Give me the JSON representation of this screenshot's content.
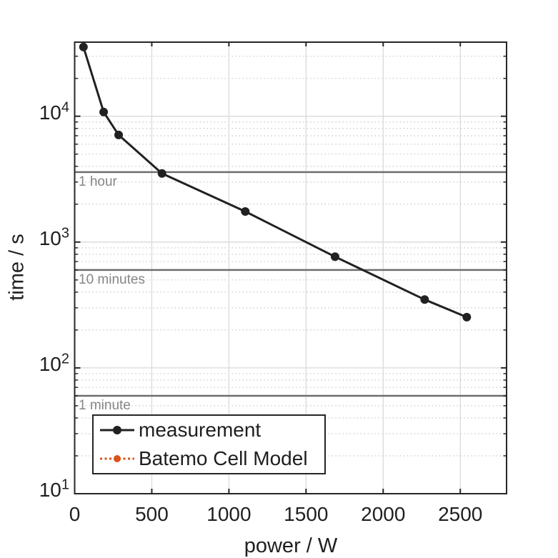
{
  "chart_data": {
    "type": "line",
    "title": "",
    "xlabel": "power / W",
    "ylabel": "time / s",
    "xscale": "linear",
    "yscale": "log",
    "xlim": [
      0,
      2800
    ],
    "ylim": [
      10,
      38800
    ],
    "xticks": [
      0,
      500,
      1000,
      1500,
      2000,
      2500
    ],
    "yticks": [
      {
        "base": "10",
        "exp": "1",
        "value": 10
      },
      {
        "base": "10",
        "exp": "2",
        "value": 100
      },
      {
        "base": "10",
        "exp": "3",
        "value": 1000
      },
      {
        "base": "10",
        "exp": "4",
        "value": 10000
      }
    ],
    "grid": {
      "x_major": true,
      "y_major": true,
      "y_minor": "dotted",
      "x_minor": false
    },
    "series": [
      {
        "name": "measurement",
        "color": "#212121",
        "line_style": "solid",
        "marker": "filled-circle",
        "points": [
          [
            57,
            35500
          ],
          [
            188,
            10800
          ],
          [
            285,
            7100
          ],
          [
            566,
            3510
          ],
          [
            1106,
            1750
          ],
          [
            1688,
            765
          ],
          [
            2269,
            349
          ],
          [
            2542,
            253
          ]
        ]
      },
      {
        "name": "Batemo Cell Model",
        "color": "#D95319",
        "line_style": "dotted",
        "marker": "filled-circle",
        "points": []
      }
    ],
    "reference_lines": [
      {
        "label": "1 hour",
        "value": 3600
      },
      {
        "label": "10 minutes",
        "value": 600
      },
      {
        "label": "1 minute",
        "value": 60
      }
    ],
    "legend": {
      "position": "south-west",
      "entries": [
        "measurement",
        "Batemo Cell Model"
      ]
    }
  },
  "colors": {
    "axis": "#262626",
    "text": "#1f1f1f",
    "measurement_line": "#212121",
    "model_line": "#D95319",
    "reference_line": "#6e6e6e",
    "annotation_text": "#868686",
    "grid_major": "#dadada",
    "grid_minor": "#c8c8c8",
    "background": "#ffffff"
  }
}
